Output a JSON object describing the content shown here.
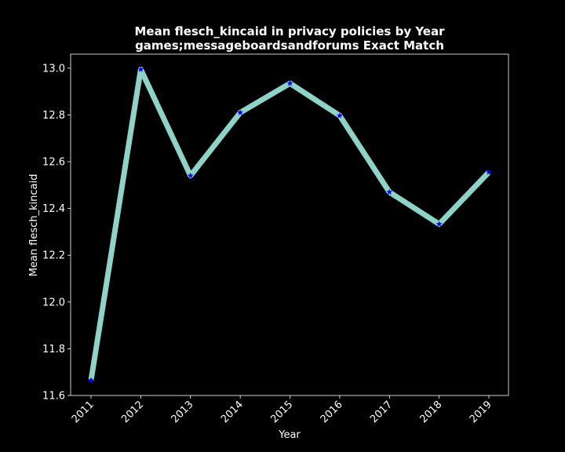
{
  "chart_data": {
    "type": "line",
    "title": "Mean flesch_kincaid in privacy policies by Year",
    "subtitle": "games;messageboardsandforums Exact Match",
    "xlabel": "Year",
    "ylabel": "Mean flesch_kincaid",
    "categories": [
      "2011",
      "2012",
      "2013",
      "2014",
      "2015",
      "2016",
      "2017",
      "2018",
      "2019"
    ],
    "series": [
      {
        "values": [
          11.665,
          12.995,
          12.54,
          12.81,
          12.935,
          12.797,
          12.47,
          12.333,
          12.555
        ]
      }
    ],
    "yticks": [
      "11.6",
      "11.8",
      "12.0",
      "12.2",
      "12.4",
      "12.6",
      "12.8",
      "13.0"
    ],
    "ylim": [
      11.6,
      13.06
    ],
    "grid": false,
    "line_color": "#8dd3c7",
    "marker_color": "#0000ff",
    "text_color": "#ffffff",
    "background": "#000000"
  }
}
